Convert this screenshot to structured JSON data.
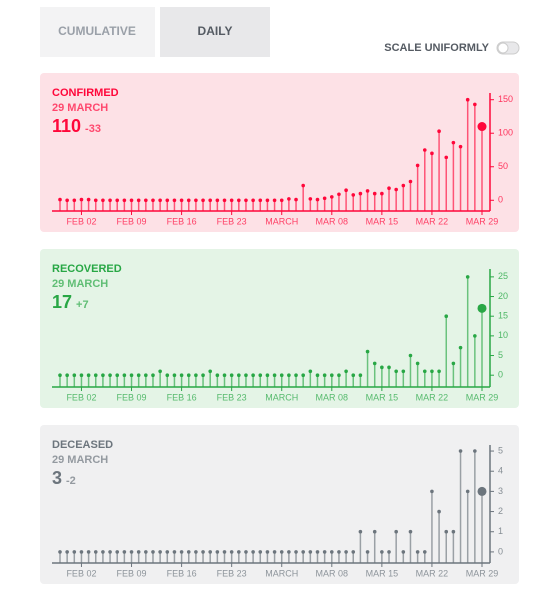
{
  "tabs": [
    "CUMULATIVE",
    "DAILY"
  ],
  "toggle_label": "SCALE UNIFORMLY",
  "chart_data": [
    {
      "type": "stem",
      "title": "CONFIRMED",
      "subtitle": "29 MARCH",
      "headline": {
        "value": 110,
        "change": -33
      },
      "color": "#ff073a",
      "background": "#fde1e6",
      "categories": [
        null,
        null,
        null,
        "FEB 02",
        null,
        null,
        null,
        null,
        null,
        null,
        "FEB 09",
        null,
        null,
        null,
        null,
        null,
        null,
        "FEB 16",
        null,
        null,
        null,
        null,
        null,
        null,
        "FEB 23",
        null,
        null,
        null,
        null,
        null,
        null,
        "MARCH",
        null,
        null,
        null,
        null,
        null,
        null,
        "MAR 08",
        null,
        null,
        null,
        null,
        null,
        null,
        "MAR 15",
        null,
        null,
        null,
        null,
        null,
        null,
        "MAR 22",
        null,
        null,
        null,
        null,
        null,
        null,
        "MAR 29"
      ],
      "values": [
        1,
        0,
        0,
        1,
        1,
        0,
        0,
        0,
        0,
        0,
        0,
        0,
        0,
        0,
        0,
        0,
        0,
        0,
        0,
        0,
        0,
        0,
        0,
        0,
        0,
        0,
        0,
        0,
        0,
        0,
        0,
        0,
        2,
        1,
        22,
        2,
        1,
        3,
        5,
        9,
        15,
        8,
        10,
        14,
        10,
        10,
        18,
        16,
        22,
        28,
        52,
        75,
        70,
        103,
        64,
        86,
        80,
        150,
        143,
        110
      ],
      "ylim": [
        -16,
        160
      ],
      "yticks": [
        0,
        50,
        100,
        150
      ]
    },
    {
      "type": "stem",
      "title": "RECOVERED",
      "subtitle": "29 MARCH",
      "headline": {
        "value": 17,
        "change": {
          "value": 7,
          "label": "+7"
        }
      },
      "color": "#28a745",
      "background": "#e4f4e6",
      "categories": [
        null,
        null,
        null,
        "FEB 02",
        null,
        null,
        null,
        null,
        null,
        null,
        "FEB 09",
        null,
        null,
        null,
        null,
        null,
        null,
        "FEB 16",
        null,
        null,
        null,
        null,
        null,
        null,
        "FEB 23",
        null,
        null,
        null,
        null,
        null,
        null,
        "MARCH",
        null,
        null,
        null,
        null,
        null,
        null,
        "MAR 08",
        null,
        null,
        null,
        null,
        null,
        null,
        "MAR 15",
        null,
        null,
        null,
        null,
        null,
        null,
        "MAR 22",
        null,
        null,
        null,
        null,
        null,
        null,
        "MAR 29"
      ],
      "values": [
        0,
        0,
        0,
        0,
        0,
        0,
        0,
        0,
        0,
        0,
        0,
        0,
        0,
        0,
        1,
        0,
        0,
        0,
        0,
        0,
        0,
        1,
        0,
        0,
        0,
        0,
        0,
        0,
        0,
        0,
        0,
        0,
        0,
        0,
        0,
        1,
        0,
        0,
        0,
        0,
        1,
        0,
        0,
        6,
        3,
        2,
        2,
        1,
        1,
        5,
        3,
        1,
        1,
        1,
        15,
        3,
        7,
        25,
        10,
        17
      ],
      "ylim": [
        -3,
        27
      ],
      "yticks": [
        0,
        5,
        10,
        15,
        20,
        25
      ]
    },
    {
      "type": "stem",
      "title": "DECEASED",
      "subtitle": "29 MARCH",
      "headline": {
        "value": 3,
        "change": -2
      },
      "color": "#6c757d",
      "background": "#f0f0f1",
      "categories": [
        null,
        null,
        null,
        "FEB 02",
        null,
        null,
        null,
        null,
        null,
        null,
        "FEB 09",
        null,
        null,
        null,
        null,
        null,
        null,
        "FEB 16",
        null,
        null,
        null,
        null,
        null,
        null,
        "FEB 23",
        null,
        null,
        null,
        null,
        null,
        null,
        "MARCH",
        null,
        null,
        null,
        null,
        null,
        null,
        "MAR 08",
        null,
        null,
        null,
        null,
        null,
        null,
        "MAR 15",
        null,
        null,
        null,
        null,
        null,
        null,
        "MAR 22",
        null,
        null,
        null,
        null,
        null,
        null,
        "MAR 29"
      ],
      "values": [
        0,
        0,
        0,
        0,
        0,
        0,
        0,
        0,
        0,
        0,
        0,
        0,
        0,
        0,
        0,
        0,
        0,
        0,
        0,
        0,
        0,
        0,
        0,
        0,
        0,
        0,
        0,
        0,
        0,
        0,
        0,
        0,
        0,
        0,
        0,
        0,
        0,
        0,
        0,
        0,
        0,
        0,
        1,
        0,
        1,
        0,
        0,
        1,
        0,
        1,
        0,
        0,
        3,
        2,
        1,
        1,
        5,
        3,
        5,
        3
      ],
      "ylim": [
        -0.55,
        5.3
      ],
      "yticks": [
        0,
        1,
        2,
        3,
        4,
        5
      ]
    }
  ]
}
